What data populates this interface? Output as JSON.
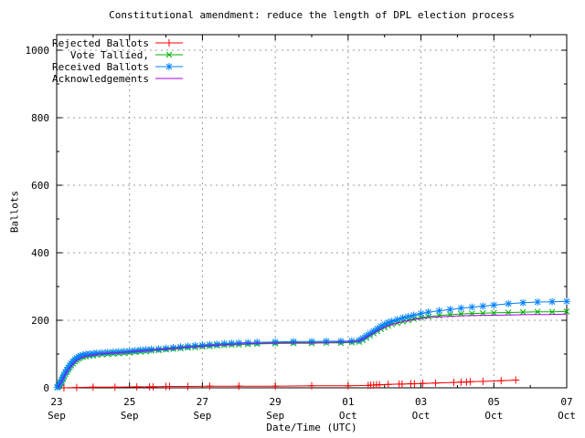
{
  "chart_data": {
    "type": "line",
    "title": "Constitutional amendment: reduce the length of DPL election process",
    "xlabel": "Date/Time (UTC)",
    "ylabel": "Ballots",
    "x_unit": "days since 23 Sep 00:00",
    "xlim": [
      0,
      14
    ],
    "ylim": [
      0,
      1046
    ],
    "grid": true,
    "grid_color": "#9e9e9e",
    "axis_color": "#000000",
    "background_color": "#ffffff",
    "legend_position": "top-left-inside",
    "y_ticks": [
      0,
      200,
      400,
      600,
      800,
      1000
    ],
    "y_minor_ticks": [
      100,
      300,
      500,
      700,
      900
    ],
    "x_minor_ticks": [
      1,
      3,
      5,
      7,
      9,
      11,
      13
    ],
    "x_ticks": [
      {
        "t": 0,
        "day": "23",
        "month": "Sep"
      },
      {
        "t": 2,
        "day": "25",
        "month": "Sep"
      },
      {
        "t": 4,
        "day": "27",
        "month": "Sep"
      },
      {
        "t": 6,
        "day": "29",
        "month": "Sep"
      },
      {
        "t": 8,
        "day": "01",
        "month": "Oct"
      },
      {
        "t": 10,
        "day": "03",
        "month": "Oct"
      },
      {
        "t": 12,
        "day": "05",
        "month": "Oct"
      },
      {
        "t": 14,
        "day": "07",
        "month": "Oct"
      }
    ],
    "series": [
      {
        "id": "rejected",
        "name": "Rejected Ballots",
        "color": "#ff0000",
        "marker": "plus",
        "points": [
          [
            0.2,
            0
          ],
          [
            0.55,
            1
          ],
          [
            1.0,
            2
          ],
          [
            1.6,
            2
          ],
          [
            2.2,
            3
          ],
          [
            2.55,
            3
          ],
          [
            2.65,
            3
          ],
          [
            3.0,
            4
          ],
          [
            3.1,
            4
          ],
          [
            3.6,
            4
          ],
          [
            4.2,
            5
          ],
          [
            5.0,
            5
          ],
          [
            6.0,
            5
          ],
          [
            7.0,
            6
          ],
          [
            8.0,
            6
          ],
          [
            8.55,
            7
          ],
          [
            8.62,
            8
          ],
          [
            8.7,
            8
          ],
          [
            8.78,
            9
          ],
          [
            8.86,
            9
          ],
          [
            9.1,
            10
          ],
          [
            9.4,
            11
          ],
          [
            9.48,
            11
          ],
          [
            9.72,
            12
          ],
          [
            9.82,
            12
          ],
          [
            10.05,
            13
          ],
          [
            10.4,
            14
          ],
          [
            10.9,
            16
          ],
          [
            11.1,
            17
          ],
          [
            11.25,
            17
          ],
          [
            11.35,
            18
          ],
          [
            11.7,
            19
          ],
          [
            12.2,
            21
          ],
          [
            12.6,
            23
          ]
        ]
      },
      {
        "id": "tallied",
        "name": "Vote Tallied,",
        "color": "#00b000",
        "marker": "cross",
        "points": [
          [
            0.02,
            1
          ],
          [
            0.05,
            4
          ],
          [
            0.08,
            8
          ],
          [
            0.11,
            13
          ],
          [
            0.14,
            19
          ],
          [
            0.17,
            26
          ],
          [
            0.2,
            33
          ],
          [
            0.24,
            40
          ],
          [
            0.28,
            47
          ],
          [
            0.32,
            54
          ],
          [
            0.36,
            60
          ],
          [
            0.4,
            66
          ],
          [
            0.45,
            72
          ],
          [
            0.5,
            78
          ],
          [
            0.55,
            82
          ],
          [
            0.6,
            86
          ],
          [
            0.65,
            89
          ],
          [
            0.72,
            91
          ],
          [
            0.8,
            93
          ],
          [
            0.9,
            95
          ],
          [
            1.0,
            96
          ],
          [
            1.1,
            98
          ],
          [
            1.25,
            99
          ],
          [
            1.4,
            100
          ],
          [
            1.55,
            101
          ],
          [
            1.7,
            102
          ],
          [
            1.85,
            103
          ],
          [
            2.0,
            104
          ],
          [
            2.15,
            106
          ],
          [
            2.3,
            107
          ],
          [
            2.45,
            108
          ],
          [
            2.6,
            110
          ],
          [
            2.8,
            111
          ],
          [
            3.0,
            113
          ],
          [
            3.2,
            115
          ],
          [
            3.4,
            117
          ],
          [
            3.6,
            119
          ],
          [
            3.8,
            120
          ],
          [
            4.0,
            122
          ],
          [
            4.2,
            123
          ],
          [
            4.4,
            125
          ],
          [
            4.6,
            126
          ],
          [
            4.8,
            127
          ],
          [
            5.0,
            128
          ],
          [
            5.25,
            129
          ],
          [
            5.5,
            130
          ],
          [
            6.0,
            131
          ],
          [
            6.5,
            132
          ],
          [
            7.0,
            132
          ],
          [
            7.4,
            133
          ],
          [
            7.8,
            133
          ],
          [
            8.1,
            134
          ],
          [
            8.3,
            136
          ],
          [
            8.4,
            141
          ],
          [
            8.5,
            148
          ],
          [
            8.6,
            155
          ],
          [
            8.7,
            161
          ],
          [
            8.8,
            168
          ],
          [
            8.9,
            174
          ],
          [
            9.0,
            179
          ],
          [
            9.1,
            184
          ],
          [
            9.2,
            188
          ],
          [
            9.35,
            192
          ],
          [
            9.5,
            196
          ],
          [
            9.65,
            200
          ],
          [
            9.8,
            204
          ],
          [
            10.0,
            208
          ],
          [
            10.2,
            211
          ],
          [
            10.5,
            214
          ],
          [
            10.8,
            217
          ],
          [
            11.1,
            219
          ],
          [
            11.4,
            220
          ],
          [
            11.7,
            221
          ],
          [
            12.0,
            222
          ],
          [
            12.4,
            223
          ],
          [
            12.8,
            224
          ],
          [
            13.2,
            225
          ],
          [
            13.6,
            225
          ],
          [
            14.0,
            226
          ]
        ]
      },
      {
        "id": "received",
        "name": "Received Ballots",
        "color": "#0080ff",
        "marker": "star",
        "points": [
          [
            0.02,
            2
          ],
          [
            0.05,
            6
          ],
          [
            0.08,
            11
          ],
          [
            0.11,
            17
          ],
          [
            0.14,
            24
          ],
          [
            0.17,
            31
          ],
          [
            0.2,
            38
          ],
          [
            0.24,
            46
          ],
          [
            0.28,
            53
          ],
          [
            0.32,
            60
          ],
          [
            0.36,
            66
          ],
          [
            0.4,
            72
          ],
          [
            0.45,
            78
          ],
          [
            0.5,
            84
          ],
          [
            0.55,
            88
          ],
          [
            0.6,
            92
          ],
          [
            0.65,
            95
          ],
          [
            0.72,
            97
          ],
          [
            0.8,
            99
          ],
          [
            0.9,
            100
          ],
          [
            1.0,
            101
          ],
          [
            1.1,
            103
          ],
          [
            1.25,
            104
          ],
          [
            1.4,
            105
          ],
          [
            1.55,
            106
          ],
          [
            1.7,
            107
          ],
          [
            1.85,
            108
          ],
          [
            2.0,
            109
          ],
          [
            2.15,
            110
          ],
          [
            2.3,
            112
          ],
          [
            2.45,
            113
          ],
          [
            2.6,
            114
          ],
          [
            2.8,
            115
          ],
          [
            3.0,
            117
          ],
          [
            3.2,
            119
          ],
          [
            3.4,
            121
          ],
          [
            3.6,
            123
          ],
          [
            3.8,
            125
          ],
          [
            4.0,
            126
          ],
          [
            4.2,
            128
          ],
          [
            4.4,
            129
          ],
          [
            4.6,
            131
          ],
          [
            4.8,
            132
          ],
          [
            5.0,
            133
          ],
          [
            5.25,
            134
          ],
          [
            5.5,
            135
          ],
          [
            6.0,
            136
          ],
          [
            6.5,
            137
          ],
          [
            7.0,
            137
          ],
          [
            7.4,
            138
          ],
          [
            7.8,
            138
          ],
          [
            8.1,
            139
          ],
          [
            8.3,
            141
          ],
          [
            8.4,
            147
          ],
          [
            8.5,
            154
          ],
          [
            8.6,
            161
          ],
          [
            8.7,
            168
          ],
          [
            8.8,
            175
          ],
          [
            8.9,
            182
          ],
          [
            9.0,
            188
          ],
          [
            9.1,
            193
          ],
          [
            9.2,
            197
          ],
          [
            9.35,
            202
          ],
          [
            9.5,
            207
          ],
          [
            9.65,
            211
          ],
          [
            9.8,
            215
          ],
          [
            10.0,
            220
          ],
          [
            10.2,
            224
          ],
          [
            10.5,
            228
          ],
          [
            10.8,
            232
          ],
          [
            11.1,
            236
          ],
          [
            11.4,
            239
          ],
          [
            11.7,
            242
          ],
          [
            12.0,
            245
          ],
          [
            12.4,
            249
          ],
          [
            12.8,
            252
          ],
          [
            13.2,
            254
          ],
          [
            13.6,
            255
          ],
          [
            14.0,
            256
          ]
        ]
      },
      {
        "id": "acknowledgements",
        "name": "Acknowledgements",
        "color": "#aa00ee",
        "marker": "none",
        "points": [
          [
            0.03,
            2
          ],
          [
            0.08,
            9
          ],
          [
            0.13,
            18
          ],
          [
            0.18,
            28
          ],
          [
            0.24,
            40
          ],
          [
            0.3,
            51
          ],
          [
            0.38,
            62
          ],
          [
            0.46,
            72
          ],
          [
            0.55,
            81
          ],
          [
            0.65,
            88
          ],
          [
            0.78,
            93
          ],
          [
            0.95,
            97
          ],
          [
            1.15,
            100
          ],
          [
            1.4,
            102
          ],
          [
            1.7,
            104
          ],
          [
            2.0,
            106
          ],
          [
            2.3,
            109
          ],
          [
            2.6,
            112
          ],
          [
            3.0,
            115
          ],
          [
            3.4,
            119
          ],
          [
            3.8,
            122
          ],
          [
            4.2,
            125
          ],
          [
            4.6,
            128
          ],
          [
            5.0,
            130
          ],
          [
            5.5,
            132
          ],
          [
            6.0,
            133
          ],
          [
            6.5,
            134
          ],
          [
            7.0,
            134
          ],
          [
            7.5,
            135
          ],
          [
            8.0,
            136
          ],
          [
            8.3,
            139
          ],
          [
            8.5,
            150
          ],
          [
            8.7,
            163
          ],
          [
            8.9,
            175
          ],
          [
            9.1,
            184
          ],
          [
            9.35,
            192
          ],
          [
            9.6,
            198
          ],
          [
            9.85,
            203
          ],
          [
            10.1,
            207
          ],
          [
            10.5,
            210
          ],
          [
            11.0,
            213
          ],
          [
            11.5,
            214
          ],
          [
            12.0,
            215
          ],
          [
            12.5,
            216
          ],
          [
            13.0,
            217
          ],
          [
            13.5,
            217
          ],
          [
            14.0,
            218
          ]
        ]
      }
    ]
  }
}
